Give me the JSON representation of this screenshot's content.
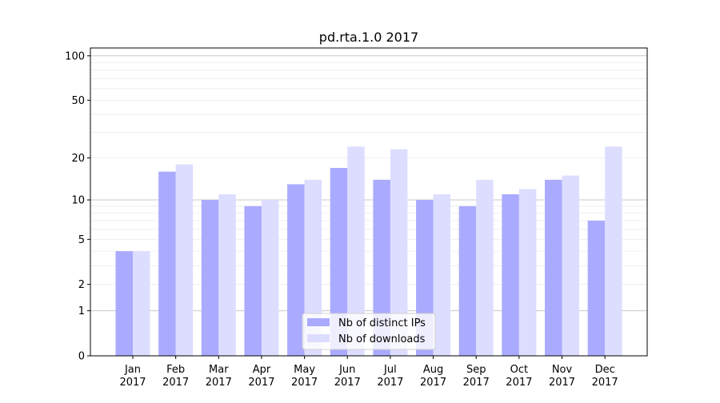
{
  "chart_data": {
    "type": "bar",
    "title": "pd.rta.1.0 2017",
    "xlabel": "",
    "ylabel": "",
    "yscale": "log10(1+y)",
    "ylim": [
      0,
      113
    ],
    "yticks": [
      0,
      1,
      2,
      5,
      10,
      20,
      50,
      100
    ],
    "categories": [
      "Jan\n2017",
      "Feb\n2017",
      "Mar\n2017",
      "Apr\n2017",
      "May\n2017",
      "Jun\n2017",
      "Jul\n2017",
      "Aug\n2017",
      "Sep\n2017",
      "Oct\n2017",
      "Nov\n2017",
      "Dec\n2017"
    ],
    "series": [
      {
        "name": "Nb of distinct IPs",
        "color": "#aaaaff",
        "values": [
          4,
          16,
          10,
          9,
          13,
          17,
          14,
          10,
          9,
          11,
          14,
          7
        ]
      },
      {
        "name": "Nb of downloads",
        "color": "#ddddff",
        "values": [
          4,
          18,
          11,
          10,
          14,
          24,
          23,
          11,
          14,
          12,
          15,
          24
        ]
      }
    ],
    "grid": true,
    "legend_position": "bottom-center"
  }
}
